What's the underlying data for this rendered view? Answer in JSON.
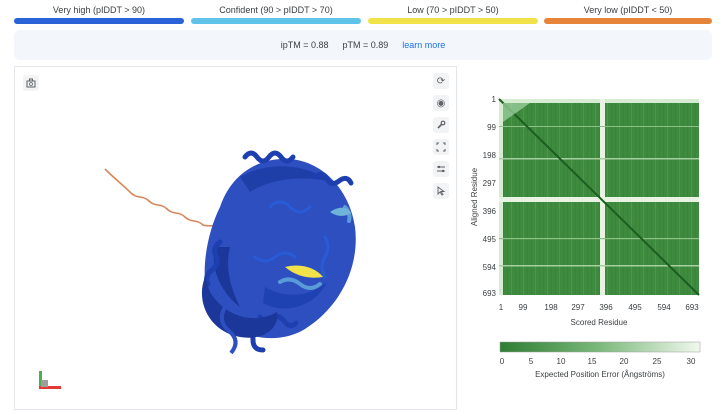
{
  "confidence_legend": [
    {
      "label": "Very high (pIDDT > 90)",
      "color": "#2a62d8"
    },
    {
      "label": "Confident (90 > pIDDT > 70)",
      "color": "#5fc3ea"
    },
    {
      "label": "Low (70 > pIDDT > 50)",
      "color": "#f2e24a"
    },
    {
      "label": "Very low (pIDDT < 50)",
      "color": "#e6843a"
    }
  ],
  "metrics": {
    "iptm": "ipTM = 0.88",
    "ptm": "pTM = 0.89",
    "learn_more": "learn more"
  },
  "viewer_tools": [
    {
      "name": "reset-view-icon",
      "glyph": "⟳"
    },
    {
      "name": "center-icon",
      "glyph": "◉"
    },
    {
      "name": "wrench-icon",
      "glyph": "🔧"
    },
    {
      "name": "fullscreen-icon",
      "glyph": "⛶"
    },
    {
      "name": "sliders-icon",
      "glyph": "≡"
    },
    {
      "name": "pointer-icon",
      "glyph": "⬉"
    }
  ],
  "pae": {
    "y_title": "Aligned Residue",
    "x_title": "Scored Residue",
    "ticks": [
      "1",
      "99",
      "198",
      "297",
      "396",
      "495",
      "594",
      "693"
    ],
    "colorbar_title": "Expected Position Error (Ångströms)",
    "colorbar_ticks": [
      "0",
      "5",
      "10",
      "15",
      "20",
      "25",
      "30"
    ]
  }
}
